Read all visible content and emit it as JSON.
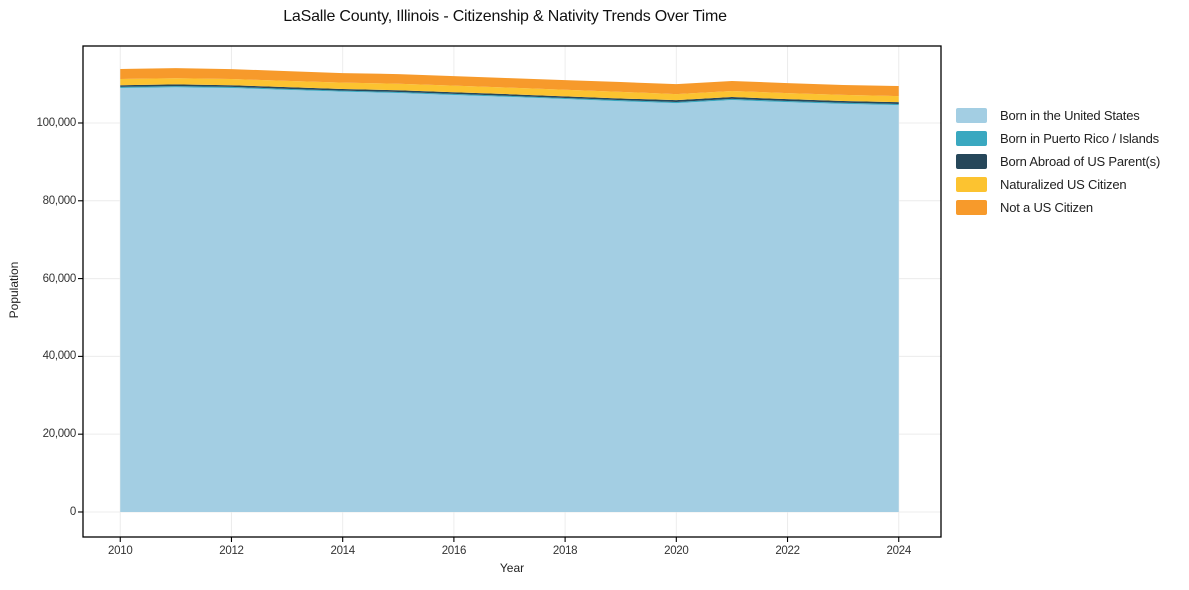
{
  "colors": {
    "grid": "#ececec",
    "spine": "#000000",
    "tick_label": "#333333",
    "background": "#ffffff"
  },
  "chart_data": {
    "type": "area",
    "stacked": true,
    "title": "LaSalle County, Illinois - Citizenship & Nativity Trends Over Time",
    "xlabel": "Year",
    "ylabel": "Population",
    "x": [
      2010,
      2011,
      2012,
      2013,
      2014,
      2015,
      2016,
      2017,
      2018,
      2019,
      2020,
      2021,
      2022,
      2023,
      2024
    ],
    "series": [
      {
        "name": "Born in the United States",
        "color": "#a3cee3",
        "values": [
          109000,
          109200,
          109000,
          108500,
          108050,
          107700,
          107200,
          106700,
          106150,
          105600,
          105100,
          105900,
          105350,
          104900,
          104600
        ]
      },
      {
        "name": "Born in Puerto Rico / Islands",
        "color": "#3aa8c0",
        "values": [
          280,
          280,
          280,
          280,
          270,
          270,
          270,
          270,
          270,
          270,
          300,
          300,
          300,
          290,
          290
        ]
      },
      {
        "name": "Born Abroad of US Parent(s)",
        "color": "#26475a",
        "values": [
          420,
          450,
          430,
          430,
          430,
          430,
          430,
          430,
          430,
          430,
          470,
          470,
          470,
          460,
          460
        ]
      },
      {
        "name": "Naturalized US Citizen",
        "color": "#fcc330",
        "values": [
          1620,
          1580,
          1590,
          1600,
          1630,
          1700,
          1700,
          1700,
          1700,
          1700,
          1560,
          1540,
          1570,
          1570,
          1560
        ]
      },
      {
        "name": "Not a US Citizen",
        "color": "#f79a2b",
        "values": [
          2560,
          2600,
          2550,
          2530,
          2450,
          2470,
          2460,
          2440,
          2480,
          2520,
          2570,
          2570,
          2570,
          2530,
          2590
        ]
      }
    ],
    "totals": [
      113880,
      114110,
      113850,
      113340,
      112830,
      112570,
      112060,
      111540,
      111030,
      110520,
      110000,
      110780,
      110260,
      109750,
      109500
    ],
    "xlim": [
      2009.33,
      2024.76
    ],
    "ylim": [
      -6430,
      119790
    ],
    "x_ticks": {
      "values": [
        2010,
        2012,
        2014,
        2016,
        2018,
        2020,
        2022,
        2024
      ],
      "labels": [
        "2010",
        "2012",
        "2014",
        "2016",
        "2018",
        "2020",
        "2022",
        "2024"
      ]
    },
    "y_ticks": {
      "values": [
        0,
        20000,
        40000,
        60000,
        80000,
        100000
      ],
      "labels": [
        "0",
        "20,000",
        "40,000",
        "60,000",
        "80,000",
        "100,000"
      ]
    },
    "grid": true,
    "legend_position": "right"
  }
}
